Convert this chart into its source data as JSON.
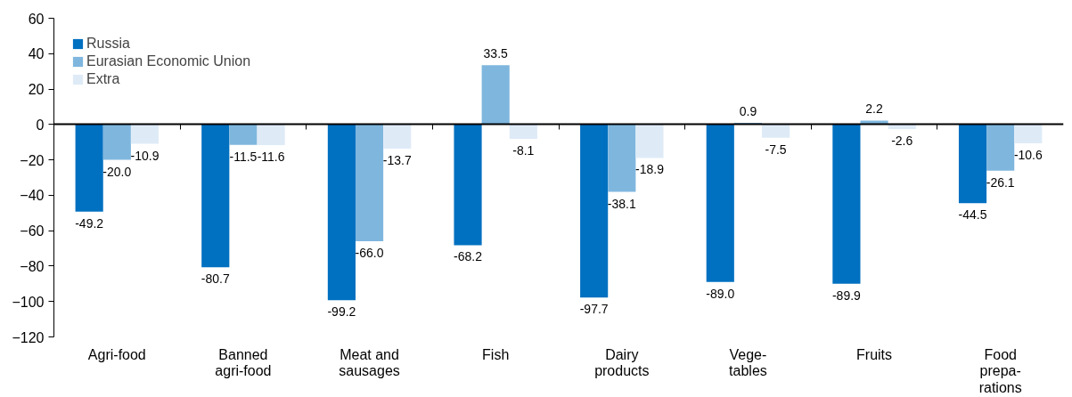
{
  "chart_data": {
    "type": "bar",
    "categories": [
      "Agri-food",
      "Banned\nagri-food",
      "Meat and\nsausages",
      "Fish",
      "Dairy\nproducts",
      "Vege-\ntables",
      "Fruits",
      "Food\nprepa-\nrations"
    ],
    "series": [
      {
        "name": "Russia",
        "color": "#0070c0",
        "values": [
          -49.2,
          -80.7,
          -99.2,
          -68.2,
          -97.7,
          -89.0,
          -89.9,
          -44.5
        ],
        "value_labels": [
          "-49.2",
          "-80.7",
          "-99.2",
          "-68.2",
          "-97.7",
          "-89.0",
          "-89.9",
          "-44.5"
        ]
      },
      {
        "name": "Eurasian Economic Union",
        "color": "#7fb6de",
        "values": [
          -20.0,
          -11.5,
          -66.0,
          33.5,
          -38.1,
          0.9,
          2.2,
          -26.1
        ],
        "value_labels": [
          "-20.0",
          "-11.5",
          "-66.0",
          "33.5",
          "-38.1",
          "0.9",
          "2.2",
          "-26.1"
        ]
      },
      {
        "name": "Extra",
        "color": "#deebf7",
        "values": [
          -10.9,
          -11.6,
          -13.7,
          -8.1,
          -18.9,
          -7.5,
          -2.6,
          -10.6
        ],
        "value_labels": [
          "-10.9",
          "-11.6",
          "-13.7",
          "-8.1",
          "-18.9",
          "-7.5",
          "-2.6",
          "-10.6"
        ]
      }
    ],
    "ylim": [
      -120,
      60
    ],
    "yticks": [
      -120,
      -100,
      -80,
      -60,
      -40,
      -20,
      0,
      20,
      40,
      60
    ],
    "legend": "top left"
  }
}
